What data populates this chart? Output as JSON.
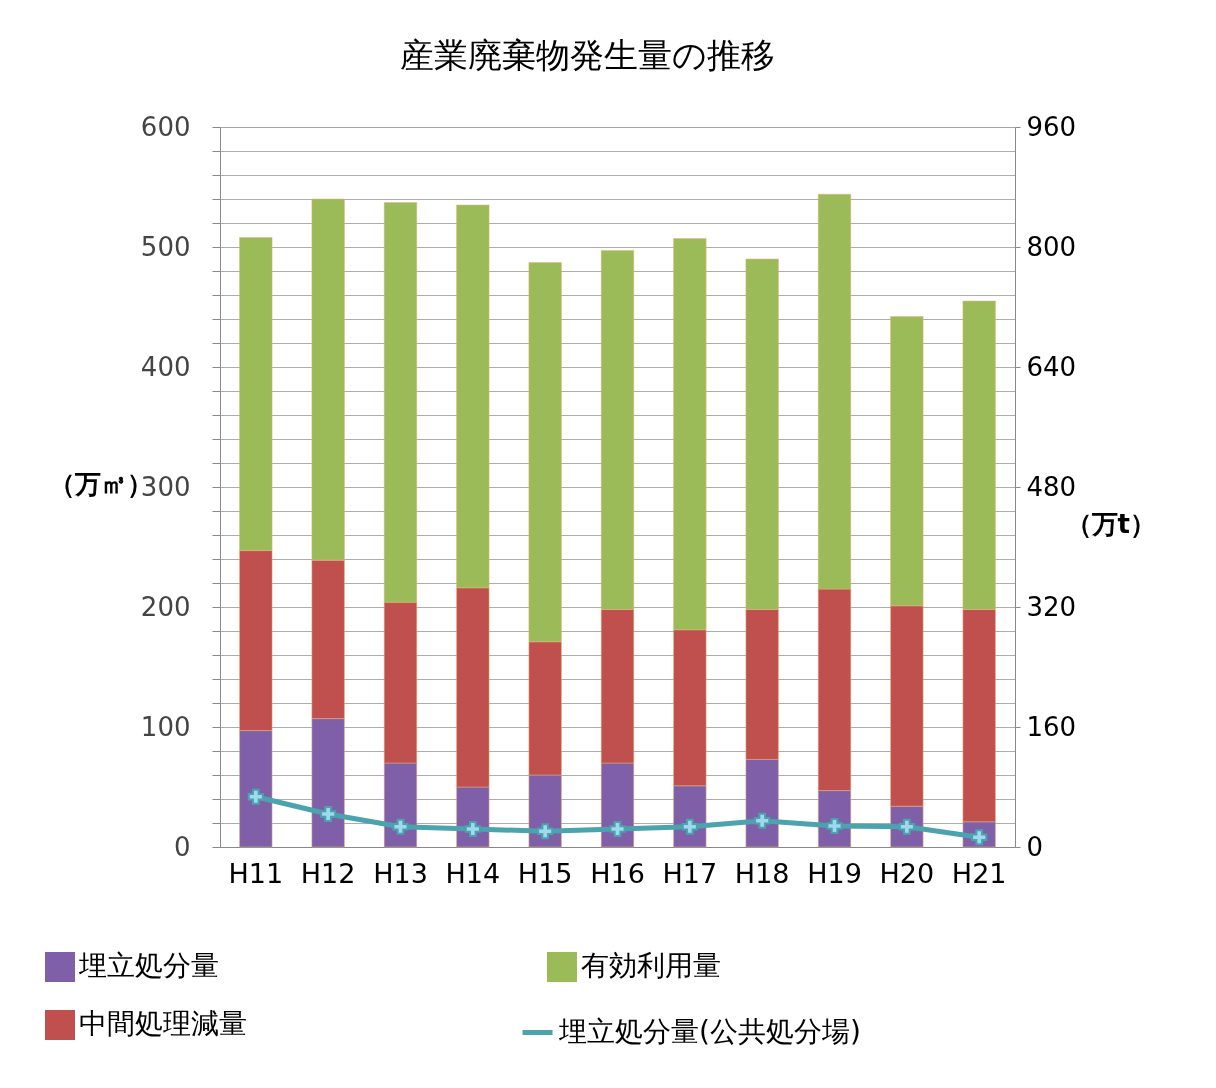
{
  "chart_data": {
    "type": "bar",
    "title": "産業廃棄物発生量の推移",
    "ylabel": "（万㎥）",
    "y2label": "（万t）",
    "categories": [
      "H11",
      "H12",
      "H13",
      "H14",
      "H15",
      "H16",
      "H17",
      "H18",
      "H19",
      "H20",
      "H21"
    ],
    "stacked": true,
    "series": [
      {
        "name": "埋立処分量",
        "color": "#7f60a8",
        "values": [
          97,
          107,
          70,
          50,
          60,
          70,
          51,
          73,
          47,
          34,
          21
        ]
      },
      {
        "name": "中間処理減量",
        "color": "#c0504d",
        "values": [
          150,
          132,
          134,
          166,
          111,
          128,
          130,
          125,
          168,
          167,
          177
        ]
      },
      {
        "name": "有効利用量",
        "color": "#9bbb59",
        "values": [
          261,
          301,
          333,
          319,
          316,
          299,
          326,
          292,
          329,
          241,
          257
        ]
      },
      {
        "name": "埋立処分量(公共処分場)",
        "type": "line",
        "axis": "y2",
        "marker": "cross",
        "color": "#4aa3ad",
        "values": [
          67,
          44,
          27,
          24,
          21,
          24,
          27,
          35,
          28,
          27,
          13
        ]
      }
    ],
    "ylim": [
      0,
      600
    ],
    "yticks": [
      0,
      {
        "value": 20,
        "label": null
      },
      {
        "value": 40,
        "label": null
      },
      {
        "value": 60,
        "label": null
      },
      {
        "value": 80,
        "label": null
      },
      100,
      {
        "value": 120,
        "label": null
      },
      {
        "value": 140,
        "label": null
      },
      {
        "value": 160,
        "label": null
      },
      {
        "value": 180,
        "label": null
      },
      200,
      {
        "value": 220,
        "label": null
      },
      {
        "value": 240,
        "label": null
      },
      {
        "value": 260,
        "label": null
      },
      {
        "value": 280,
        "label": null
      },
      300,
      {
        "value": 320,
        "label": null
      },
      {
        "value": 340,
        "label": null
      },
      {
        "value": 360,
        "label": null
      },
      {
        "value": 380,
        "label": null
      },
      400,
      {
        "value": 420,
        "label": null
      },
      {
        "value": 440,
        "label": null
      },
      {
        "value": 460,
        "label": null
      },
      {
        "value": 480,
        "label": null
      },
      500,
      {
        "value": 520,
        "label": null
      },
      {
        "value": 540,
        "label": null
      },
      {
        "value": 560,
        "label": null
      },
      {
        "value": 580,
        "label": null
      },
      600
    ],
    "y2lim": [
      0,
      960
    ],
    "y2ticks": [
      0,
      160,
      320,
      480,
      640,
      800,
      960
    ],
    "grid": "y",
    "legend": "bottom"
  }
}
